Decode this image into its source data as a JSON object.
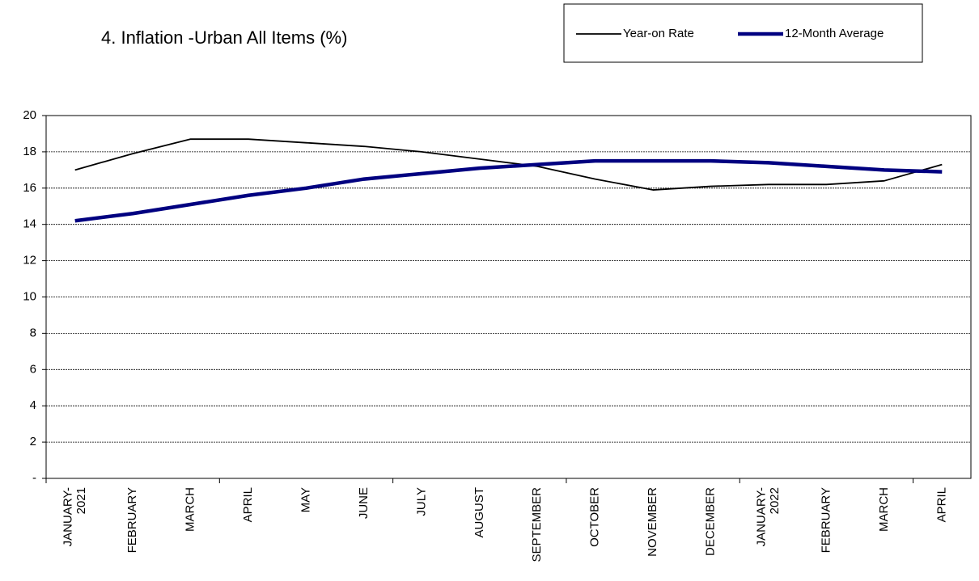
{
  "chart_data": {
    "type": "line",
    "title": "4. Inflation -Urban All Items (%)",
    "categories": [
      "JANUARY-\n2021",
      "FEBRUARY",
      "MARCH",
      "APRIL",
      "MAY",
      "JUNE",
      "JULY",
      "AUGUST",
      "SEPTEMBER",
      "OCTOBER",
      "NOVEMBER",
      "DECEMBER",
      "JANUARY-\n2022",
      "FEBRUARY",
      "MARCH",
      "APRIL"
    ],
    "series": [
      {
        "name": "Year-on Rate",
        "color": "#000000",
        "values": [
          17.0,
          17.9,
          18.7,
          18.7,
          18.5,
          18.3,
          18.0,
          17.6,
          17.2,
          16.5,
          15.9,
          16.1,
          16.2,
          16.2,
          16.4,
          17.3
        ]
      },
      {
        "name": "12-Month Average",
        "color": "#000080",
        "values": [
          14.2,
          14.6,
          15.1,
          15.6,
          16.0,
          16.5,
          16.8,
          17.1,
          17.3,
          17.5,
          17.5,
          17.5,
          17.4,
          17.2,
          17.0,
          16.9
        ]
      }
    ],
    "ylim": [
      0,
      20
    ],
    "yticks": [
      {
        "value": 0,
        "label": "-"
      },
      2,
      4,
      6,
      8,
      10,
      12,
      14,
      16,
      18,
      20
    ],
    "grid": true,
    "legend": "top-right"
  }
}
